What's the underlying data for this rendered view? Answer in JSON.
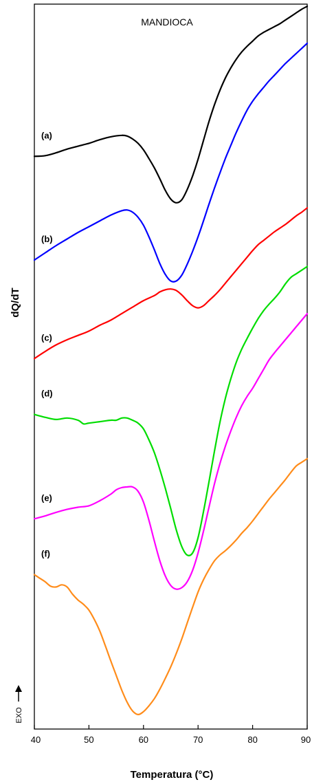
{
  "chart_data": {
    "type": "line",
    "title": "MANDIOCA",
    "xlabel": "Temperatura (°C)",
    "ylabel": "dQ/dT",
    "exo_label": "EXO",
    "xlim": [
      40,
      90
    ],
    "ylim": [
      0,
      100
    ],
    "xticks": [
      40,
      50,
      60,
      70,
      80,
      90
    ],
    "grid": false,
    "series": [
      {
        "name": "(a)",
        "color": "#000000",
        "points": [
          [
            40,
            79.0
          ],
          [
            42,
            79.1
          ],
          [
            44,
            79.5
          ],
          [
            46,
            80.0
          ],
          [
            48,
            80.4
          ],
          [
            50,
            80.8
          ],
          [
            52,
            81.3
          ],
          [
            54,
            81.7
          ],
          [
            56,
            81.9
          ],
          [
            57,
            81.8
          ],
          [
            58,
            81.4
          ],
          [
            59,
            80.8
          ],
          [
            60,
            79.9
          ],
          [
            61,
            78.7
          ],
          [
            62,
            77.4
          ],
          [
            63,
            75.9
          ],
          [
            64,
            74.3
          ],
          [
            65,
            73.1
          ],
          [
            66,
            72.6
          ],
          [
            67,
            73.0
          ],
          [
            68,
            74.4
          ],
          [
            69,
            76.3
          ],
          [
            70,
            78.6
          ],
          [
            71,
            81.2
          ],
          [
            72,
            83.8
          ],
          [
            73,
            86.1
          ],
          [
            74,
            88.1
          ],
          [
            75,
            89.8
          ],
          [
            76,
            91.2
          ],
          [
            77,
            92.4
          ],
          [
            78,
            93.4
          ],
          [
            79,
            94.2
          ],
          [
            80,
            94.9
          ],
          [
            81,
            95.6
          ],
          [
            82,
            96.1
          ],
          [
            83,
            96.5
          ],
          [
            84,
            96.9
          ],
          [
            85,
            97.3
          ],
          [
            86,
            97.8
          ],
          [
            87,
            98.3
          ],
          [
            88,
            98.8
          ],
          [
            89,
            99.3
          ],
          [
            90,
            99.7
          ]
        ]
      },
      {
        "name": "(b)",
        "color": "#0000ff",
        "points": [
          [
            40,
            64.7
          ],
          [
            42,
            65.7
          ],
          [
            44,
            66.7
          ],
          [
            46,
            67.6
          ],
          [
            48,
            68.5
          ],
          [
            50,
            69.3
          ],
          [
            52,
            70.1
          ],
          [
            54,
            70.9
          ],
          [
            56,
            71.5
          ],
          [
            57,
            71.6
          ],
          [
            58,
            71.3
          ],
          [
            59,
            70.6
          ],
          [
            60,
            69.5
          ],
          [
            61,
            67.9
          ],
          [
            62,
            66.1
          ],
          [
            63,
            64.2
          ],
          [
            64,
            62.7
          ],
          [
            65,
            61.8
          ],
          [
            66,
            61.8
          ],
          [
            67,
            62.6
          ],
          [
            68,
            64.1
          ],
          [
            69,
            65.9
          ],
          [
            70,
            67.9
          ],
          [
            71,
            70.1
          ],
          [
            72,
            72.4
          ],
          [
            73,
            74.6
          ],
          [
            74,
            76.7
          ],
          [
            75,
            78.7
          ],
          [
            76,
            80.5
          ],
          [
            77,
            82.3
          ],
          [
            78,
            83.9
          ],
          [
            79,
            85.4
          ],
          [
            80,
            86.6
          ],
          [
            81,
            87.6
          ],
          [
            82,
            88.5
          ],
          [
            83,
            89.4
          ],
          [
            84,
            90.2
          ],
          [
            85,
            91.0
          ],
          [
            86,
            91.8
          ],
          [
            87,
            92.5
          ],
          [
            88,
            93.2
          ],
          [
            89,
            93.9
          ],
          [
            90,
            94.6
          ]
        ]
      },
      {
        "name": "(c)",
        "color": "#ff0000",
        "points": [
          [
            40,
            51.1
          ],
          [
            42,
            52.1
          ],
          [
            44,
            53.0
          ],
          [
            46,
            53.7
          ],
          [
            48,
            54.3
          ],
          [
            50,
            54.9
          ],
          [
            52,
            55.7
          ],
          [
            54,
            56.4
          ],
          [
            56,
            57.3
          ],
          [
            58,
            58.2
          ],
          [
            60,
            59.1
          ],
          [
            62,
            59.8
          ],
          [
            63,
            60.3
          ],
          [
            64,
            60.6
          ],
          [
            65,
            60.7
          ],
          [
            66,
            60.5
          ],
          [
            67,
            59.9
          ],
          [
            68,
            59.1
          ],
          [
            69,
            58.4
          ],
          [
            70,
            58.1
          ],
          [
            71,
            58.4
          ],
          [
            72,
            59.1
          ],
          [
            73,
            59.8
          ],
          [
            74,
            60.6
          ],
          [
            75,
            61.5
          ],
          [
            76,
            62.4
          ],
          [
            77,
            63.3
          ],
          [
            78,
            64.2
          ],
          [
            79,
            65.1
          ],
          [
            80,
            66.0
          ],
          [
            81,
            66.8
          ],
          [
            82,
            67.4
          ],
          [
            83,
            68.0
          ],
          [
            84,
            68.6
          ],
          [
            85,
            69.1
          ],
          [
            86,
            69.6
          ],
          [
            87,
            70.2
          ],
          [
            88,
            70.8
          ],
          [
            89,
            71.3
          ],
          [
            90,
            71.9
          ]
        ]
      },
      {
        "name": "(d)",
        "color": "#00dd00",
        "points": [
          [
            40,
            43.4
          ],
          [
            42,
            43.0
          ],
          [
            44,
            42.7
          ],
          [
            46,
            42.9
          ],
          [
            48,
            42.6
          ],
          [
            49,
            42.1
          ],
          [
            50,
            42.2
          ],
          [
            52,
            42.4
          ],
          [
            54,
            42.6
          ],
          [
            55,
            42.6
          ],
          [
            56,
            42.9
          ],
          [
            57,
            42.9
          ],
          [
            58,
            42.6
          ],
          [
            59,
            42.2
          ],
          [
            60,
            41.4
          ],
          [
            61,
            39.9
          ],
          [
            62,
            38.1
          ],
          [
            63,
            35.8
          ],
          [
            64,
            33.2
          ],
          [
            65,
            30.4
          ],
          [
            66,
            27.5
          ],
          [
            67,
            25.2
          ],
          [
            68,
            24.0
          ],
          [
            69,
            24.3
          ],
          [
            70,
            26.4
          ],
          [
            71,
            30.0
          ],
          [
            72,
            34.1
          ],
          [
            73,
            38.3
          ],
          [
            74,
            42.3
          ],
          [
            75,
            45.6
          ],
          [
            76,
            48.3
          ],
          [
            77,
            50.6
          ],
          [
            78,
            52.4
          ],
          [
            79,
            53.9
          ],
          [
            80,
            55.3
          ],
          [
            81,
            56.6
          ],
          [
            82,
            57.7
          ],
          [
            83,
            58.6
          ],
          [
            84,
            59.4
          ],
          [
            85,
            60.3
          ],
          [
            86,
            61.4
          ],
          [
            87,
            62.3
          ],
          [
            88,
            62.8
          ],
          [
            89,
            63.3
          ],
          [
            90,
            63.8
          ]
        ]
      },
      {
        "name": "(e)",
        "color": "#ff00ff",
        "points": [
          [
            40,
            29.0
          ],
          [
            42,
            29.4
          ],
          [
            44,
            29.9
          ],
          [
            46,
            30.3
          ],
          [
            48,
            30.6
          ],
          [
            50,
            30.8
          ],
          [
            52,
            31.5
          ],
          [
            54,
            32.4
          ],
          [
            55,
            33.0
          ],
          [
            56,
            33.3
          ],
          [
            57,
            33.4
          ],
          [
            58,
            33.4
          ],
          [
            59,
            32.8
          ],
          [
            60,
            31.3
          ],
          [
            61,
            28.8
          ],
          [
            62,
            25.9
          ],
          [
            63,
            23.2
          ],
          [
            64,
            21.1
          ],
          [
            65,
            19.8
          ],
          [
            66,
            19.3
          ],
          [
            67,
            19.5
          ],
          [
            68,
            20.3
          ],
          [
            69,
            21.9
          ],
          [
            70,
            24.3
          ],
          [
            71,
            27.3
          ],
          [
            72,
            30.6
          ],
          [
            73,
            33.8
          ],
          [
            74,
            36.6
          ],
          [
            75,
            39.0
          ],
          [
            76,
            41.1
          ],
          [
            77,
            43.0
          ],
          [
            78,
            44.6
          ],
          [
            79,
            45.9
          ],
          [
            80,
            47.0
          ],
          [
            81,
            48.3
          ],
          [
            82,
            49.6
          ],
          [
            83,
            50.9
          ],
          [
            84,
            51.9
          ],
          [
            85,
            52.8
          ],
          [
            86,
            53.7
          ],
          [
            87,
            54.6
          ],
          [
            88,
            55.5
          ],
          [
            89,
            56.4
          ],
          [
            90,
            57.3
          ]
        ]
      },
      {
        "name": "(f)",
        "color": "#ff8c1a",
        "points": [
          [
            40,
            21.3
          ],
          [
            41,
            20.8
          ],
          [
            42,
            20.3
          ],
          [
            43,
            19.7
          ],
          [
            44,
            19.6
          ],
          [
            45,
            19.9
          ],
          [
            46,
            19.6
          ],
          [
            47,
            18.6
          ],
          [
            48,
            17.8
          ],
          [
            49,
            17.2
          ],
          [
            50,
            16.4
          ],
          [
            51,
            15.1
          ],
          [
            52,
            13.5
          ],
          [
            53,
            11.5
          ],
          [
            54,
            9.4
          ],
          [
            55,
            7.4
          ],
          [
            56,
            5.4
          ],
          [
            57,
            3.7
          ],
          [
            58,
            2.5
          ],
          [
            59,
            2.0
          ],
          [
            60,
            2.4
          ],
          [
            61,
            3.2
          ],
          [
            62,
            4.2
          ],
          [
            63,
            5.5
          ],
          [
            64,
            7.0
          ],
          [
            65,
            8.6
          ],
          [
            66,
            10.4
          ],
          [
            67,
            12.4
          ],
          [
            68,
            14.6
          ],
          [
            69,
            16.8
          ],
          [
            70,
            18.9
          ],
          [
            71,
            20.6
          ],
          [
            72,
            22.0
          ],
          [
            73,
            23.2
          ],
          [
            74,
            24.0
          ],
          [
            75,
            24.6
          ],
          [
            76,
            25.3
          ],
          [
            77,
            26.1
          ],
          [
            78,
            27.0
          ],
          [
            79,
            27.8
          ],
          [
            80,
            28.7
          ],
          [
            81,
            29.7
          ],
          [
            82,
            30.7
          ],
          [
            83,
            31.7
          ],
          [
            84,
            32.6
          ],
          [
            85,
            33.5
          ],
          [
            86,
            34.4
          ],
          [
            87,
            35.4
          ],
          [
            88,
            36.3
          ],
          [
            89,
            36.8
          ],
          [
            90,
            37.3
          ]
        ]
      }
    ]
  }
}
